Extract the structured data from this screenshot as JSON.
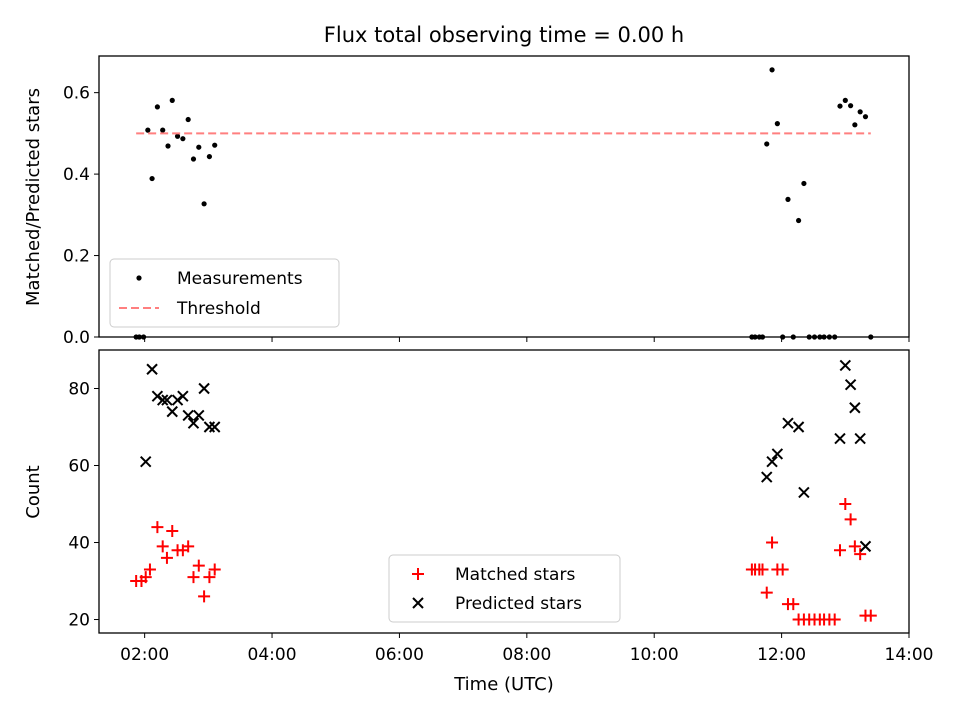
{
  "figure": {
    "title": "Flux total observing time = 0.00 h",
    "xlabel": "Time (UTC)",
    "x_ticks": [
      "02:00",
      "04:00",
      "06:00",
      "08:00",
      "10:00",
      "12:00",
      "14:00"
    ]
  },
  "chart_data": [
    {
      "type": "scatter",
      "ylabel": "Matched/Predicted stars",
      "xlim": [
        "01:17",
        "14:00"
      ],
      "ylim": [
        0,
        0.69
      ],
      "y_ticks": [
        "0.0",
        "0.2",
        "0.4",
        "0.6"
      ],
      "legend": {
        "position": "lower-left",
        "entries": [
          "Measurements",
          "Threshold"
        ]
      },
      "series": [
        {
          "name": "Measurements",
          "marker": "dot",
          "color": "#000000",
          "points": [
            [
              "01:52",
              0.0
            ],
            [
              "01:55",
              0.0
            ],
            [
              "01:59",
              0.0
            ],
            [
              "02:03",
              0.508
            ],
            [
              "02:07",
              0.389
            ],
            [
              "02:12",
              0.565
            ],
            [
              "02:17",
              0.508
            ],
            [
              "02:22",
              0.469
            ],
            [
              "02:26",
              0.581
            ],
            [
              "02:31",
              0.493
            ],
            [
              "02:36",
              0.487
            ],
            [
              "02:41",
              0.534
            ],
            [
              "02:46",
              0.437
            ],
            [
              "02:51",
              0.466
            ],
            [
              "02:56",
              0.327
            ],
            [
              "03:01",
              0.443
            ],
            [
              "03:06",
              0.471
            ],
            [
              "11:32",
              0.0
            ],
            [
              "11:35",
              0.0
            ],
            [
              "11:39",
              0.0
            ],
            [
              "11:42",
              0.0
            ],
            [
              "11:46",
              0.474
            ],
            [
              "11:51",
              0.656
            ],
            [
              "11:56",
              0.524
            ],
            [
              "12:01",
              0.0
            ],
            [
              "12:06",
              0.338
            ],
            [
              "12:11",
              0.0
            ],
            [
              "12:16",
              0.286
            ],
            [
              "12:21",
              0.377
            ],
            [
              "12:26",
              0.0
            ],
            [
              "12:31",
              0.0
            ],
            [
              "12:36",
              0.0
            ],
            [
              "12:40",
              0.0
            ],
            [
              "12:45",
              0.0
            ],
            [
              "12:50",
              0.0
            ],
            [
              "12:55",
              0.567
            ],
            [
              "13:00",
              0.581
            ],
            [
              "13:05",
              0.568
            ],
            [
              "13:09",
              0.521
            ],
            [
              "13:14",
              0.553
            ],
            [
              "13:19",
              0.541
            ],
            [
              "13:24",
              0.0
            ]
          ]
        },
        {
          "name": "Threshold",
          "style": "dashed",
          "color": "#ff7f7f",
          "points": [
            [
              "01:52",
              0.5
            ],
            [
              "13:24",
              0.5
            ]
          ]
        }
      ]
    },
    {
      "type": "scatter",
      "ylabel": "Count",
      "xlim": [
        "01:17",
        "14:00"
      ],
      "ylim": [
        16.5,
        90
      ],
      "y_ticks": [
        "20",
        "40",
        "60",
        "80"
      ],
      "legend": {
        "position": "lower-center",
        "entries": [
          "Matched stars",
          "Predicted stars"
        ]
      },
      "series": [
        {
          "name": "Matched stars",
          "marker": "plus",
          "color": "#ff0000",
          "points": [
            [
              "01:52",
              30
            ],
            [
              "01:57",
              30
            ],
            [
              "02:01",
              31
            ],
            [
              "02:05",
              33
            ],
            [
              "02:12",
              44
            ],
            [
              "02:17",
              39
            ],
            [
              "02:21",
              36
            ],
            [
              "02:26",
              43
            ],
            [
              "02:31",
              38
            ],
            [
              "02:36",
              38
            ],
            [
              "02:41",
              39
            ],
            [
              "02:46",
              31
            ],
            [
              "02:51",
              34
            ],
            [
              "02:56",
              26
            ],
            [
              "03:01",
              31
            ],
            [
              "03:06",
              33
            ],
            [
              "11:32",
              33
            ],
            [
              "11:35",
              33
            ],
            [
              "11:39",
              33
            ],
            [
              "11:42",
              33
            ],
            [
              "11:46",
              27
            ],
            [
              "11:51",
              40
            ],
            [
              "11:56",
              33
            ],
            [
              "12:01",
              33
            ],
            [
              "12:06",
              24
            ],
            [
              "12:11",
              24
            ],
            [
              "12:16",
              20
            ],
            [
              "12:21",
              20
            ],
            [
              "12:26",
              20
            ],
            [
              "12:31",
              20
            ],
            [
              "12:36",
              20
            ],
            [
              "12:40",
              20
            ],
            [
              "12:45",
              20
            ],
            [
              "12:50",
              20
            ],
            [
              "12:55",
              38
            ],
            [
              "13:00",
              50
            ],
            [
              "13:05",
              46
            ],
            [
              "13:09",
              39
            ],
            [
              "13:14",
              37
            ],
            [
              "13:19",
              21
            ],
            [
              "13:24",
              21
            ]
          ]
        },
        {
          "name": "Predicted stars",
          "marker": "x",
          "color": "#000000",
          "points": [
            [
              "02:01",
              61
            ],
            [
              "02:07",
              85
            ],
            [
              "02:12",
              78
            ],
            [
              "02:17",
              77
            ],
            [
              "02:21",
              77
            ],
            [
              "02:26",
              74
            ],
            [
              "02:31",
              77
            ],
            [
              "02:36",
              78
            ],
            [
              "02:41",
              73
            ],
            [
              "02:46",
              71
            ],
            [
              "02:51",
              73
            ],
            [
              "02:56",
              80
            ],
            [
              "03:01",
              70
            ],
            [
              "03:06",
              70
            ],
            [
              "11:46",
              57
            ],
            [
              "11:51",
              61
            ],
            [
              "11:56",
              63
            ],
            [
              "12:06",
              71
            ],
            [
              "12:16",
              70
            ],
            [
              "12:21",
              53
            ],
            [
              "12:55",
              67
            ],
            [
              "13:00",
              86
            ],
            [
              "13:05",
              81
            ],
            [
              "13:09",
              75
            ],
            [
              "13:14",
              67
            ],
            [
              "13:19",
              39
            ]
          ]
        }
      ]
    }
  ]
}
